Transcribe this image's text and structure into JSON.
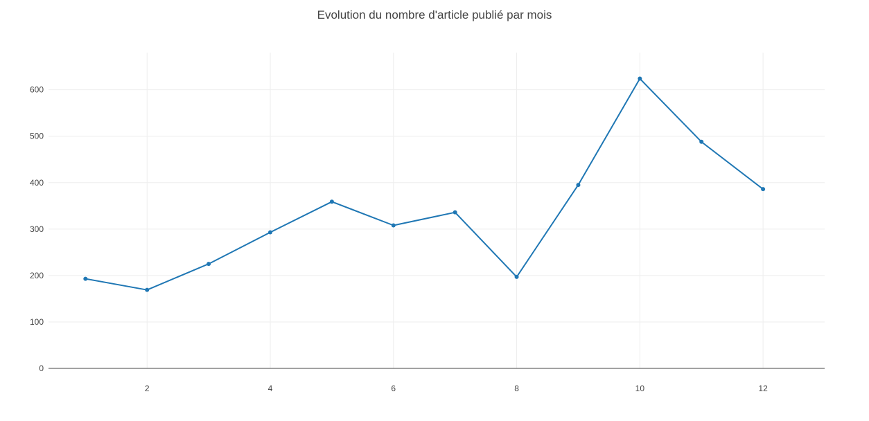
{
  "chart_data": {
    "type": "line",
    "title": "Evolution du nombre d'article publié par mois",
    "xlabel": "",
    "ylabel": "",
    "x": [
      1,
      2,
      3,
      4,
      5,
      6,
      7,
      8,
      9,
      10,
      11,
      12
    ],
    "series": [
      {
        "values": [
          193,
          169,
          225,
          293,
          359,
          308,
          336,
          197,
          395,
          624,
          488,
          386
        ]
      }
    ],
    "xlim": [
      0.4,
      13.0
    ],
    "ylim": [
      0,
      680
    ],
    "x_ticks": [
      2,
      4,
      6,
      8,
      10,
      12
    ],
    "x_tick_labels": [
      "2",
      "4",
      "6",
      "8",
      "10",
      "12"
    ],
    "y_ticks": [
      0,
      100,
      200,
      300,
      400,
      500,
      600
    ],
    "y_tick_labels": [
      "0",
      "100",
      "200",
      "300",
      "400",
      "500",
      "600"
    ],
    "grid": true,
    "legend": "none",
    "colors": {
      "line": "#1f77b4",
      "grid": "#eeeeee",
      "zeroline": "#444444",
      "text": "#444444"
    }
  }
}
